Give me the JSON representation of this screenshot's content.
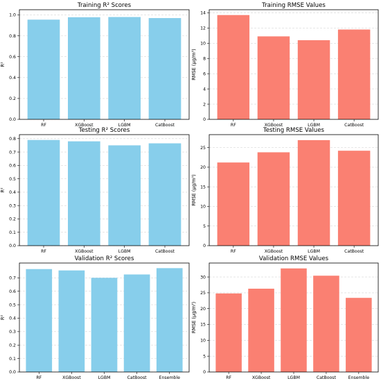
{
  "colors": {
    "r2": "#87ceeb",
    "rmse": "#fa8072"
  },
  "chart_data": [
    {
      "type": "bar",
      "title": "Training R² Scores",
      "xlabel": "",
      "ylabel": "R²",
      "categories": [
        "RF",
        "XGBoost",
        "LGBM",
        "CatBoost"
      ],
      "values": [
        0.955,
        0.978,
        0.98,
        0.97
      ],
      "ylim": [
        0,
        1.05
      ],
      "yticks": [
        0.0,
        0.2,
        0.4,
        0.6,
        0.8,
        1.0
      ],
      "ytick_labels": [
        "0.0",
        "0.2",
        "0.4",
        "0.6",
        "0.8",
        "1.0"
      ],
      "grid": "y-dashed",
      "color": "#87ceeb"
    },
    {
      "type": "bar",
      "title": "Training RMSE Values",
      "xlabel": "",
      "ylabel": "RMSE (μg/m³)",
      "categories": [
        "RF",
        "XGBoost",
        "LGBM",
        "CatBoost"
      ],
      "values": [
        13.7,
        10.9,
        10.4,
        11.8
      ],
      "ylim": [
        0,
        14.4
      ],
      "yticks": [
        0,
        2,
        4,
        6,
        8,
        10,
        12,
        14
      ],
      "ytick_labels": [
        "0",
        "2",
        "4",
        "6",
        "8",
        "10",
        "12",
        "14"
      ],
      "grid": "y-dashed",
      "color": "#fa8072"
    },
    {
      "type": "bar",
      "title": "Testing R² Scores",
      "xlabel": "",
      "ylabel": "R²",
      "categories": [
        "RF",
        "XGBoost",
        "LGBM",
        "CatBoost"
      ],
      "values": [
        0.79,
        0.78,
        0.75,
        0.765
      ],
      "ylim": [
        0,
        0.83
      ],
      "yticks": [
        0.0,
        0.1,
        0.2,
        0.3,
        0.4,
        0.5,
        0.6,
        0.7,
        0.8
      ],
      "ytick_labels": [
        "0.0",
        "0.1",
        "0.2",
        "0.3",
        "0.4",
        "0.5",
        "0.6",
        "0.7",
        "0.8"
      ],
      "grid": "y-dashed",
      "color": "#87ceeb"
    },
    {
      "type": "bar",
      "title": "Testing RMSE Values",
      "xlabel": "",
      "ylabel": "RMSE (μg/m³)",
      "categories": [
        "RF",
        "XGBoost",
        "LGBM",
        "CatBoost"
      ],
      "values": [
        21.2,
        23.8,
        26.9,
        24.2
      ],
      "ylim": [
        0,
        28.3
      ],
      "yticks": [
        0,
        5,
        10,
        15,
        20,
        25
      ],
      "ytick_labels": [
        "0",
        "5",
        "10",
        "15",
        "20",
        "25"
      ],
      "grid": "y-dashed",
      "color": "#fa8072"
    },
    {
      "type": "bar",
      "title": "Validation R² Scores",
      "xlabel": "",
      "ylabel": "R²",
      "categories": [
        "RF",
        "XGBoost",
        "LGBM",
        "CatBoost",
        "Ensemble"
      ],
      "values": [
        0.765,
        0.755,
        0.7,
        0.725,
        0.772
      ],
      "ylim": [
        0,
        0.81
      ],
      "yticks": [
        0.0,
        0.1,
        0.2,
        0.3,
        0.4,
        0.5,
        0.6,
        0.7
      ],
      "ytick_labels": [
        "0.0",
        "0.1",
        "0.2",
        "0.3",
        "0.4",
        "0.5",
        "0.6",
        "0.7"
      ],
      "grid": "y-dashed",
      "color": "#87ceeb"
    },
    {
      "type": "bar",
      "title": "Validation RMSE Values",
      "xlabel": "",
      "ylabel": "RMSE (μg/m³)",
      "categories": [
        "RF",
        "XGBoost",
        "LGBM",
        "CatBoost",
        "Ensemble"
      ],
      "values": [
        24.8,
        26.3,
        32.7,
        30.4,
        23.4
      ],
      "ylim": [
        0,
        34.4
      ],
      "yticks": [
        0,
        5,
        10,
        15,
        20,
        25,
        30
      ],
      "ytick_labels": [
        "0",
        "5",
        "10",
        "15",
        "20",
        "25",
        "30"
      ],
      "grid": "y-dashed",
      "color": "#fa8072"
    }
  ]
}
